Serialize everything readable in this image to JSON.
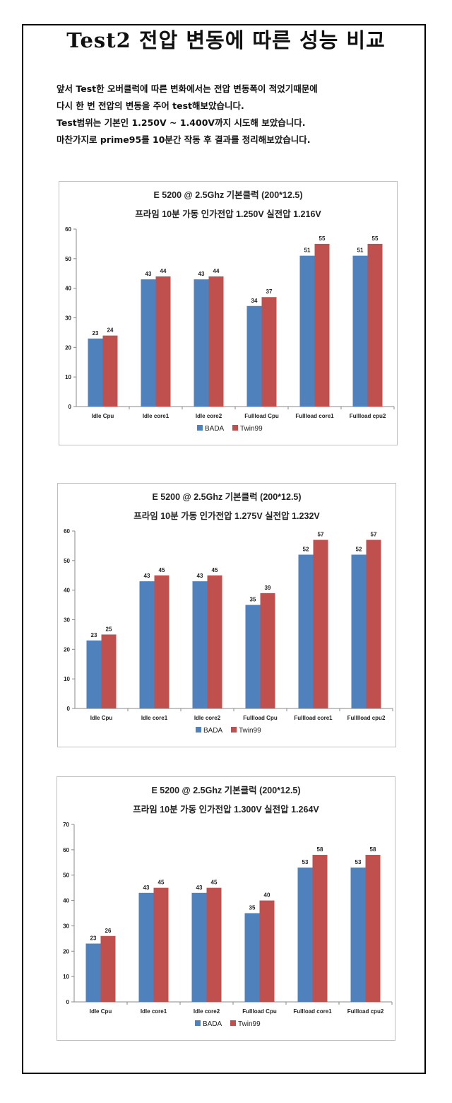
{
  "page_title": "Test2 전압 변동에 따른 성능 비교",
  "intro_lines": [
    "앞서 Test한 오버클럭에 따른 변화에서는 전압 변동폭이 적었기때문에",
    "다시 한 번 전압의 변동을 주어 test해보았습니다.",
    "Test범위는 기본인 1.250V ~ 1.400V까지 시도해 보았습니다.",
    "마찬가지로 prime95를 10분간 작동 후 결과를 정리해보았습니다."
  ],
  "colors": {
    "BADA": "#4f81bd",
    "Twin99": "#c0504d"
  },
  "chart_data": [
    {
      "type": "bar",
      "title": "E 5200 @ 2.5Ghz 기본클럭 (200*12.5)",
      "subtitle": "프라임 10분 가동 인가전압 1.250V 실전압 1.216V",
      "categories": [
        "Idle Cpu",
        "Idle core1",
        "Idle core2",
        "Fullload Cpu",
        "Fullload core1",
        "Fullload cpu2"
      ],
      "series": [
        {
          "name": "BADA",
          "values": [
            23,
            43,
            43,
            34,
            51,
            51
          ]
        },
        {
          "name": "Twin99",
          "values": [
            24,
            44,
            44,
            37,
            55,
            55
          ]
        }
      ],
      "ylim": [
        0,
        60
      ],
      "yticks": [
        0,
        10,
        20,
        30,
        40,
        50,
        60
      ],
      "legend": "bottom"
    },
    {
      "type": "bar",
      "title": "E 5200 @ 2.5Ghz 기본클럭 (200*12.5)",
      "subtitle": "프라임 10분 가동 인가전압 1.275V 실전압 1.232V",
      "categories": [
        "Idle Cpu",
        "Idle core1",
        "Idle core2",
        "Fullload Cpu",
        "Fullload core1",
        "Fulllload cpu2"
      ],
      "series": [
        {
          "name": "BADA",
          "values": [
            23,
            43,
            43,
            35,
            52,
            52
          ]
        },
        {
          "name": "Twin99",
          "values": [
            25,
            45,
            45,
            39,
            57,
            57
          ]
        }
      ],
      "ylim": [
        0,
        60
      ],
      "yticks": [
        0,
        10,
        20,
        30,
        40,
        50,
        60
      ],
      "legend": "bottom"
    },
    {
      "type": "bar",
      "title": "E 5200 @ 2.5Ghz 기본클럭 (200*12.5)",
      "subtitle": "프라임 10분 가동 인가전압 1.300V 실전압 1.264V",
      "categories": [
        "Idle Cpu",
        "Idle core1",
        "Idle core2",
        "Fullload Cpu",
        "Fullload core1",
        "Fullload cpu2"
      ],
      "series": [
        {
          "name": "BADA",
          "values": [
            23,
            43,
            43,
            35,
            53,
            53
          ]
        },
        {
          "name": "Twin99",
          "values": [
            26,
            45,
            45,
            40,
            58,
            58
          ]
        }
      ],
      "ylim": [
        0,
        70
      ],
      "yticks": [
        0,
        10,
        20,
        30,
        40,
        50,
        60,
        70
      ],
      "legend": "bottom"
    }
  ]
}
